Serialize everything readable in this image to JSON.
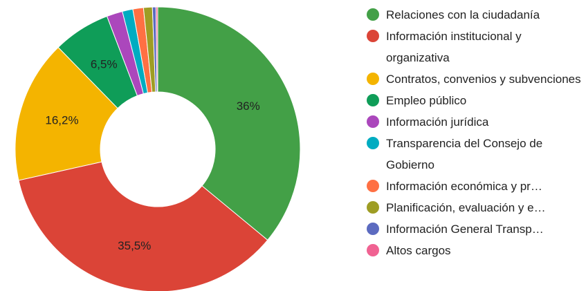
{
  "chart_data": {
    "type": "pie",
    "donut": true,
    "categories": [
      "Relaciones con la ciudadanía",
      "Información institucional y organizativa",
      "Contratos, convenios y subvenciones",
      "Empleo público",
      "Información jurídica",
      "Transparencia del Consejo de Gobierno",
      "Información económica y pr…",
      "Planificación, evaluación y e…",
      "Información General Transp…",
      "Altos cargos"
    ],
    "values": [
      36,
      35.5,
      16.2,
      6.5,
      1.8,
      1.2,
      1.2,
      1.0,
      0.4,
      0.2
    ],
    "value_labels": [
      "36%",
      "35,5%",
      "16,2%",
      "6,5%",
      null,
      null,
      null,
      null,
      null,
      null
    ],
    "colors": [
      "#43a047",
      "#db4437",
      "#f4b400",
      "#0f9d58",
      "#ab47bc",
      "#00acc1",
      "#ff7043",
      "#9e9d24",
      "#5c6bc0",
      "#f06292"
    ],
    "legend": "right"
  }
}
